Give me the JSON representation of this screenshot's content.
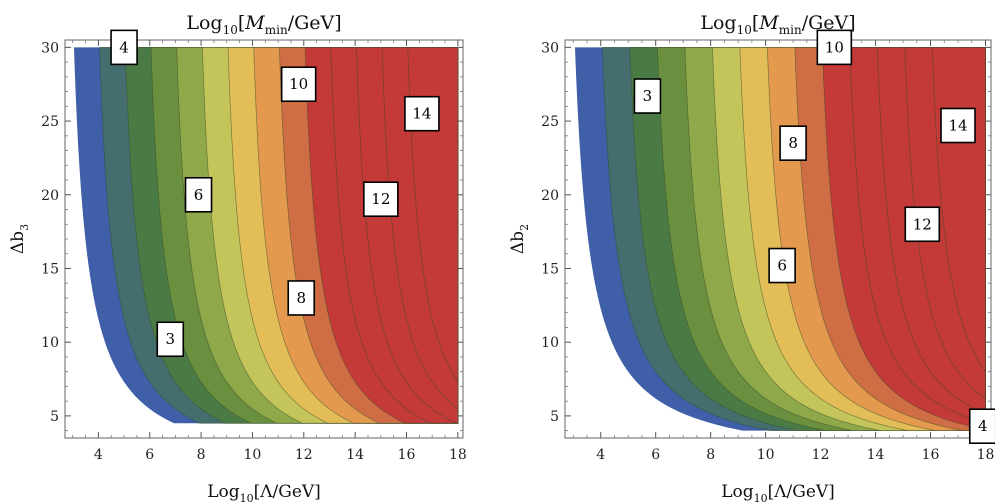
{
  "colors": {
    "bands": [
      "#3f5fa8",
      "#446e6e",
      "#4b7b45",
      "#6a8f3e",
      "#8fa94a",
      "#c3c459",
      "#e3bd57",
      "#e39a4e",
      "#cf6e45",
      "#c43a38"
    ],
    "frame": "#666666"
  },
  "chart_data": [
    {
      "type": "contour",
      "title_parts": {
        "pre": "Log",
        "sub": "10",
        "mid": "[",
        "ital": "M",
        "sub2": "min",
        "post": "/GeV]"
      },
      "xlabel_parts": {
        "pre": "Log",
        "sub": "10",
        "post": "[Λ/GeV]"
      },
      "ylabel_parts": {
        "pre": "Δb",
        "sub": "3"
      },
      "xlim": [
        2.7,
        18.2
      ],
      "ylim": [
        3.5,
        30.5
      ],
      "x_ticks": [
        4,
        6,
        8,
        10,
        12,
        14,
        16,
        18
      ],
      "y_ticks": [
        5,
        10,
        15,
        20,
        25,
        30
      ],
      "data_region": {
        "x": [
          3,
          18
        ],
        "y": [
          4.5,
          30
        ]
      },
      "formula": {
        "A": 2.3,
        "c": 0.9
      },
      "levels": [
        3,
        4,
        5,
        6,
        7,
        8,
        9,
        10,
        11,
        12,
        13,
        14,
        15
      ],
      "contour_labels": [
        {
          "text": "3",
          "x": 6.8,
          "y": 10.2
        },
        {
          "text": "4",
          "x": 5.0,
          "y": 30.0
        },
        {
          "text": "6",
          "x": 7.9,
          "y": 20.0
        },
        {
          "text": "8",
          "x": 11.9,
          "y": 13.0
        },
        {
          "text": "10",
          "x": 11.8,
          "y": 27.5
        },
        {
          "text": "12",
          "x": 15.0,
          "y": 19.7
        },
        {
          "text": "14",
          "x": 16.6,
          "y": 25.5
        }
      ]
    },
    {
      "type": "contour",
      "title_parts": {
        "pre": "Log",
        "sub": "10",
        "mid": "[",
        "ital": "M",
        "sub2": "min",
        "post": "/GeV]"
      },
      "xlabel_parts": {
        "pre": "Log",
        "sub": "10",
        "post": "[Λ/GeV]"
      },
      "ylabel_parts": {
        "pre": "Δb",
        "sub": "2"
      },
      "xlim": [
        2.7,
        18.2
      ],
      "ylim": [
        3.5,
        30.5
      ],
      "x_ticks": [
        4,
        6,
        8,
        10,
        12,
        14,
        16,
        18
      ],
      "y_ticks": [
        5,
        10,
        15,
        20,
        25,
        30
      ],
      "data_region": {
        "x": [
          3,
          18
        ],
        "y": [
          4.0,
          30
        ]
      },
      "formula": {
        "A": 2.3,
        "c": 1.6
      },
      "levels": [
        3,
        4,
        5,
        6,
        7,
        8,
        9,
        10,
        11,
        12,
        13,
        14,
        15
      ],
      "contour_labels": [
        {
          "text": "3",
          "x": 5.7,
          "y": 26.7
        },
        {
          "text": "4",
          "x": 17.9,
          "y": 4.3
        },
        {
          "text": "6",
          "x": 10.6,
          "y": 15.2
        },
        {
          "text": "8",
          "x": 11.0,
          "y": 23.5
        },
        {
          "text": "10",
          "x": 12.5,
          "y": 30.0
        },
        {
          "text": "12",
          "x": 15.7,
          "y": 18.0
        },
        {
          "text": "14",
          "x": 17.0,
          "y": 24.7
        }
      ]
    }
  ]
}
